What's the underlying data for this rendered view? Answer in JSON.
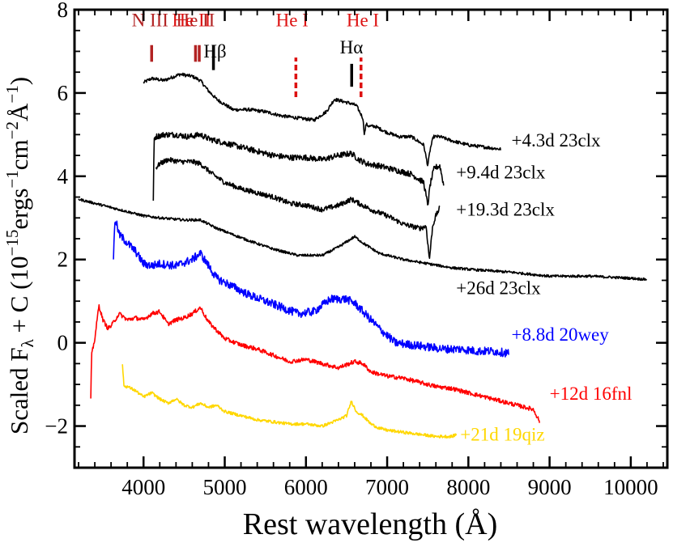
{
  "chart_data": {
    "type": "line",
    "title": "",
    "xlabel": "Rest wavelength (Å)",
    "ylabel_main": "Scaled F",
    "ylabel_sub": "λ",
    "ylabel_tail": " + C (10",
    "ylabel_exp1": "−15",
    "ylabel_mid1": "ergs",
    "ylabel_exp2": "−1",
    "ylabel_mid2": "cm",
    "ylabel_exp3": "−2",
    "ylabel_mid3": "Å",
    "ylabel_exp4": "−1",
    "ylabel_end": ")",
    "xlim": [
      3150,
      10450
    ],
    "ylim": [
      -3,
      8
    ],
    "xticks": [
      4000,
      5000,
      6000,
      7000,
      8000,
      9000,
      10000
    ],
    "yticks": [
      -2,
      0,
      2,
      4,
      6,
      8
    ],
    "ytick_labels": [
      "−2",
      "0",
      "2",
      "4",
      "6",
      "8"
    ],
    "line_markers": [
      {
        "label": "N III",
        "x": 4100,
        "color": "#b22222",
        "y0": 6.75,
        "y1": 7.15,
        "style": "solid",
        "label_x": 4080
      },
      {
        "label": "He II",
        "x": 4640,
        "color": "#b22222",
        "y0": 6.75,
        "y1": 7.15,
        "style": "solid",
        "label_x": -1
      },
      {
        "label": "",
        "x": 4686,
        "color": "#b22222",
        "y0": 6.75,
        "y1": 7.15,
        "style": "solid",
        "label_x": -1
      },
      {
        "label": "He II",
        "x": 4686,
        "color": "#dd1111",
        "y0": 6.9,
        "y1": 6.9,
        "style": "none",
        "label_x": 4590
      },
      {
        "label": "Hβ",
        "x": 4861,
        "color": "#000000",
        "y0": 6.55,
        "y1": 7.15,
        "style": "solid",
        "label_x": 4880
      },
      {
        "label": "He I",
        "x": 5876,
        "color": "#dd1111",
        "y0": 5.9,
        "y1": 6.85,
        "style": "dashed",
        "label_x": 5830
      },
      {
        "label": "Hα",
        "x": 6563,
        "color": "#000000",
        "y0": 6.15,
        "y1": 6.7,
        "style": "solid",
        "label_x": 6560
      },
      {
        "label": "He I",
        "x": 6678,
        "color": "#dd1111",
        "y0": 5.9,
        "y1": 6.85,
        "style": "dashed",
        "label_x": 6700
      }
    ],
    "series": [
      {
        "name": "+4.3d 23clx",
        "color": "#000000",
        "label_x": 8530,
        "label_y": 4.72,
        "x": [
          4000,
          4100,
          4250,
          4450,
          4600,
          4700,
          4800,
          4900,
          5100,
          5300,
          5500,
          5700,
          5900,
          6100,
          6250,
          6350,
          6450,
          6550,
          6620,
          6700,
          6720,
          6740,
          6780,
          6850,
          7000,
          7150,
          7300,
          7450,
          7500,
          7530,
          7570,
          7650,
          7800,
          8000,
          8200,
          8400
        ],
        "y": [
          6.25,
          6.35,
          6.3,
          6.45,
          6.4,
          6.3,
          6.05,
          5.85,
          5.6,
          5.6,
          5.55,
          5.45,
          5.4,
          5.35,
          5.55,
          5.85,
          5.8,
          5.75,
          5.7,
          5.4,
          5.0,
          5.25,
          5.2,
          5.2,
          5.05,
          4.95,
          4.95,
          4.75,
          4.25,
          4.65,
          4.95,
          4.95,
          4.85,
          4.75,
          4.7,
          4.65
        ]
      },
      {
        "name": "+9.4d 23clx",
        "color": "#000000",
        "label_x": 7850,
        "label_y": 3.95,
        "x": [
          4120,
          4130,
          4150,
          4250,
          4400,
          4550,
          4700,
          4800,
          5000,
          5200,
          5400,
          5600,
          5800,
          6000,
          6200,
          6400,
          6560,
          6650,
          6750,
          6900,
          7100,
          7300,
          7450,
          7500,
          7530,
          7580,
          7650,
          7700
        ],
        "y": [
          3.4,
          4.9,
          4.95,
          5.0,
          5.0,
          4.95,
          5.0,
          4.9,
          4.8,
          4.7,
          4.6,
          4.5,
          4.45,
          4.45,
          4.4,
          4.5,
          4.55,
          4.4,
          4.3,
          4.25,
          4.15,
          4.05,
          3.85,
          3.3,
          3.8,
          4.2,
          4.25,
          3.75
        ]
      },
      {
        "name": "+19.3d 23clx",
        "color": "#000000",
        "label_x": 7850,
        "label_y": 3.05,
        "x": [
          4150,
          4200,
          4300,
          4450,
          4600,
          4700,
          4850,
          5000,
          5200,
          5400,
          5600,
          5800,
          6000,
          6200,
          6400,
          6560,
          6650,
          6800,
          7000,
          7200,
          7400,
          7480,
          7520,
          7560,
          7600,
          7650
        ],
        "y": [
          4.2,
          4.3,
          4.4,
          4.35,
          4.35,
          4.3,
          4.05,
          3.85,
          3.7,
          3.6,
          3.5,
          3.35,
          3.3,
          3.2,
          3.3,
          3.45,
          3.35,
          3.2,
          3.05,
          2.85,
          2.75,
          2.8,
          2.0,
          2.8,
          3.05,
          3.25
        ]
      },
      {
        "name": "+26d 23clx",
        "color": "#000000",
        "label_x": 7850,
        "label_y": 1.17,
        "x": [
          3200,
          3400,
          3600,
          3800,
          4000,
          4200,
          4500,
          4700,
          4900,
          5100,
          5300,
          5600,
          5900,
          6200,
          6400,
          6600,
          6700,
          6900,
          7200,
          7500,
          7800,
          8100,
          8500,
          9000,
          9500,
          10000,
          10200
        ],
        "y": [
          3.45,
          3.35,
          3.25,
          3.15,
          3.05,
          3.0,
          2.95,
          2.95,
          2.75,
          2.6,
          2.45,
          2.25,
          2.1,
          2.1,
          2.3,
          2.55,
          2.4,
          2.15,
          2.0,
          1.9,
          1.8,
          1.75,
          1.7,
          1.6,
          1.6,
          1.55,
          1.52
        ]
      },
      {
        "name": "+8.8d 20wey",
        "color": "#0000ff",
        "label_x": 8530,
        "label_y": 0.05,
        "x": [
          3630,
          3650,
          3700,
          3800,
          3900,
          4000,
          4100,
          4200,
          4400,
          4600,
          4700,
          4800,
          4900,
          5100,
          5300,
          5500,
          5700,
          5900,
          6100,
          6200,
          6300,
          6400,
          6500,
          6600,
          6700,
          6800,
          6900,
          7100,
          7300,
          7500,
          7700,
          7900,
          8100,
          8300,
          8500
        ],
        "y": [
          2.05,
          3.0,
          2.6,
          2.4,
          2.2,
          1.9,
          1.85,
          1.9,
          1.85,
          2.0,
          2.15,
          1.85,
          1.55,
          1.35,
          1.15,
          1.0,
          0.85,
          0.7,
          0.75,
          0.9,
          1.05,
          1.05,
          1.05,
          0.95,
          0.75,
          0.55,
          0.35,
          0.0,
          -0.05,
          -0.1,
          -0.15,
          -0.15,
          -0.2,
          -0.2,
          -0.25
        ]
      },
      {
        "name": "+12d 16fnl",
        "color": "#ff0000",
        "label_x": 9000,
        "label_y": -1.37,
        "x": [
          3350,
          3360,
          3400,
          3450,
          3500,
          3560,
          3600,
          3700,
          3800,
          3900,
          4000,
          4100,
          4200,
          4300,
          4400,
          4500,
          4600,
          4700,
          4800,
          4900,
          5000,
          5200,
          5400,
          5600,
          5800,
          6000,
          6200,
          6400,
          6600,
          6700,
          6800,
          7000,
          7200,
          7400,
          7600,
          7800,
          8000,
          8200,
          8400,
          8600,
          8800,
          8880
        ],
        "y": [
          -1.35,
          -0.3,
          0.1,
          0.9,
          0.55,
          0.35,
          0.4,
          0.7,
          0.55,
          0.6,
          0.55,
          0.7,
          0.75,
          0.45,
          0.55,
          0.6,
          0.7,
          0.85,
          0.5,
          0.3,
          0.1,
          -0.05,
          -0.15,
          -0.3,
          -0.45,
          -0.4,
          -0.5,
          -0.6,
          -0.45,
          -0.5,
          -0.7,
          -0.8,
          -0.85,
          -0.95,
          -1.05,
          -1.1,
          -1.2,
          -1.3,
          -1.4,
          -1.5,
          -1.6,
          -1.9
        ]
      },
      {
        "name": "+21d 19qiz",
        "color": "#ffd700",
        "label_x": 7900,
        "label_y": -2.35,
        "x": [
          3740,
          3760,
          3800,
          3900,
          4000,
          4100,
          4200,
          4300,
          4400,
          4500,
          4600,
          4700,
          4800,
          4900,
          5000,
          5200,
          5400,
          5600,
          5800,
          6000,
          6200,
          6400,
          6500,
          6560,
          6620,
          6700,
          6800,
          6900,
          7000,
          7200,
          7400,
          7600,
          7800,
          7850
        ],
        "y": [
          -0.55,
          -1.05,
          -1.05,
          -1.15,
          -1.3,
          -1.2,
          -1.35,
          -1.45,
          -1.35,
          -1.5,
          -1.55,
          -1.45,
          -1.55,
          -1.5,
          -1.65,
          -1.75,
          -1.85,
          -1.9,
          -1.95,
          -1.95,
          -2.0,
          -1.85,
          -1.75,
          -1.4,
          -1.65,
          -1.75,
          -1.95,
          -2.05,
          -2.1,
          -2.15,
          -2.2,
          -2.25,
          -2.25,
          -2.2
        ]
      }
    ]
  }
}
